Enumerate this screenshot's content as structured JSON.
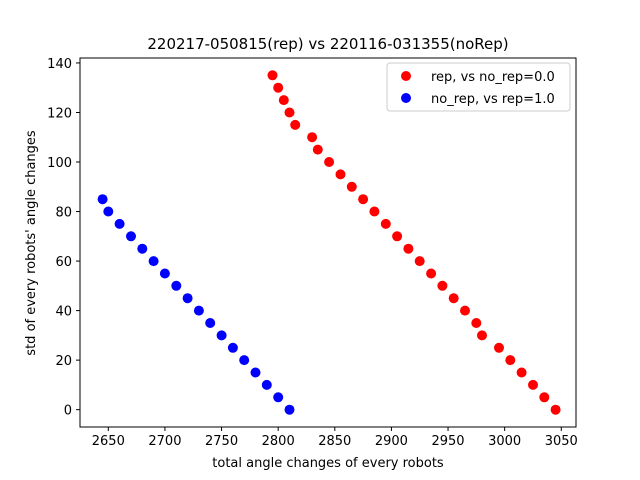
{
  "chart_data": {
    "type": "scatter",
    "title": "220217-050815(rep) vs 220116-031355(noRep)",
    "xlabel": "total angle changes of every robots",
    "ylabel": "std of every robots' angle changes",
    "xlim": [
      2625,
      3063
    ],
    "ylim": [
      -7,
      142
    ],
    "xticks": [
      2650,
      2700,
      2750,
      2800,
      2850,
      2900,
      2950,
      3000,
      3050
    ],
    "yticks": [
      0,
      20,
      40,
      60,
      80,
      100,
      120,
      140
    ],
    "grid": false,
    "legend_position": "top-right",
    "series": [
      {
        "name": "rep, vs no_rep=0.0",
        "color": "#ff0000",
        "points": [
          [
            2795,
            135
          ],
          [
            2800,
            130
          ],
          [
            2805,
            125
          ],
          [
            2810,
            120
          ],
          [
            2815,
            115
          ],
          [
            2830,
            110
          ],
          [
            2835,
            105
          ],
          [
            2845,
            100
          ],
          [
            2855,
            95
          ],
          [
            2865,
            90
          ],
          [
            2875,
            85
          ],
          [
            2885,
            80
          ],
          [
            2895,
            75
          ],
          [
            2905,
            70
          ],
          [
            2915,
            65
          ],
          [
            2925,
            60
          ],
          [
            2935,
            55
          ],
          [
            2945,
            50
          ],
          [
            2955,
            45
          ],
          [
            2965,
            40
          ],
          [
            2975,
            35
          ],
          [
            2980,
            30
          ],
          [
            2995,
            25
          ],
          [
            3005,
            20
          ],
          [
            3015,
            15
          ],
          [
            3025,
            10
          ],
          [
            3035,
            5
          ],
          [
            3045,
            0
          ]
        ]
      },
      {
        "name": "no_rep, vs rep=1.0",
        "color": "#0000ff",
        "points": [
          [
            2645,
            85
          ],
          [
            2650,
            80
          ],
          [
            2660,
            75
          ],
          [
            2670,
            70
          ],
          [
            2680,
            65
          ],
          [
            2690,
            60
          ],
          [
            2700,
            55
          ],
          [
            2710,
            50
          ],
          [
            2720,
            45
          ],
          [
            2730,
            40
          ],
          [
            2740,
            35
          ],
          [
            2750,
            30
          ],
          [
            2760,
            25
          ],
          [
            2770,
            20
          ],
          [
            2780,
            15
          ],
          [
            2790,
            10
          ],
          [
            2800,
            5
          ],
          [
            2810,
            0
          ]
        ]
      }
    ]
  }
}
